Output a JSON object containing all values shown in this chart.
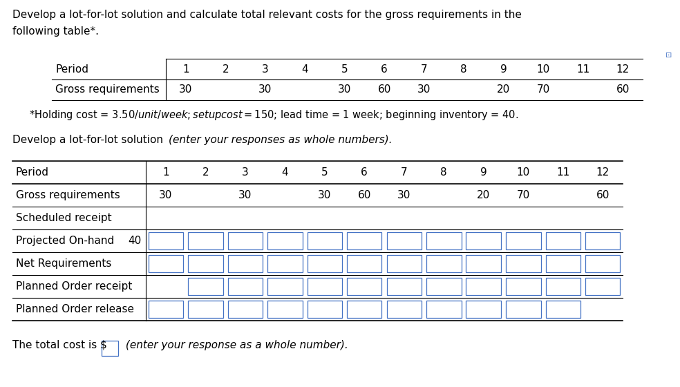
{
  "title_line1": "Develop a lot-for-lot solution and calculate total relevant costs for the gross requirements in the",
  "title_line2": "following table*.",
  "footnote": "*Holding cost = $3.50/unit/week; setup cost = $150; lead time = 1 week; beginning inventory = 40.",
  "instr_normal": "Develop a lot-for-lot solution ",
  "instr_italic": "(enter your responses as whole numbers).",
  "bottom_normal": "The total cost is $",
  "bottom_italic": " (enter your response as a whole number).",
  "periods": [
    1,
    2,
    3,
    4,
    5,
    6,
    7,
    8,
    9,
    10,
    11,
    12
  ],
  "gross_req": {
    "1": 30,
    "2": "",
    "3": 30,
    "4": "",
    "5": 30,
    "6": 60,
    "7": 30,
    "8": "",
    "9": 20,
    "10": 70,
    "11": "",
    "12": 60
  },
  "bottom_table_rows": [
    "Period",
    "Gross requirements",
    "Scheduled receipt",
    "Projected On-hand",
    "Net Requirements",
    "Planned Order receipt",
    "Planned Order release"
  ],
  "beginning_inventory": 40,
  "bg_color": "#ffffff",
  "text_color": "#000000",
  "box_color": "#4472C4",
  "font_size": 11,
  "footnote_size": 10.5
}
